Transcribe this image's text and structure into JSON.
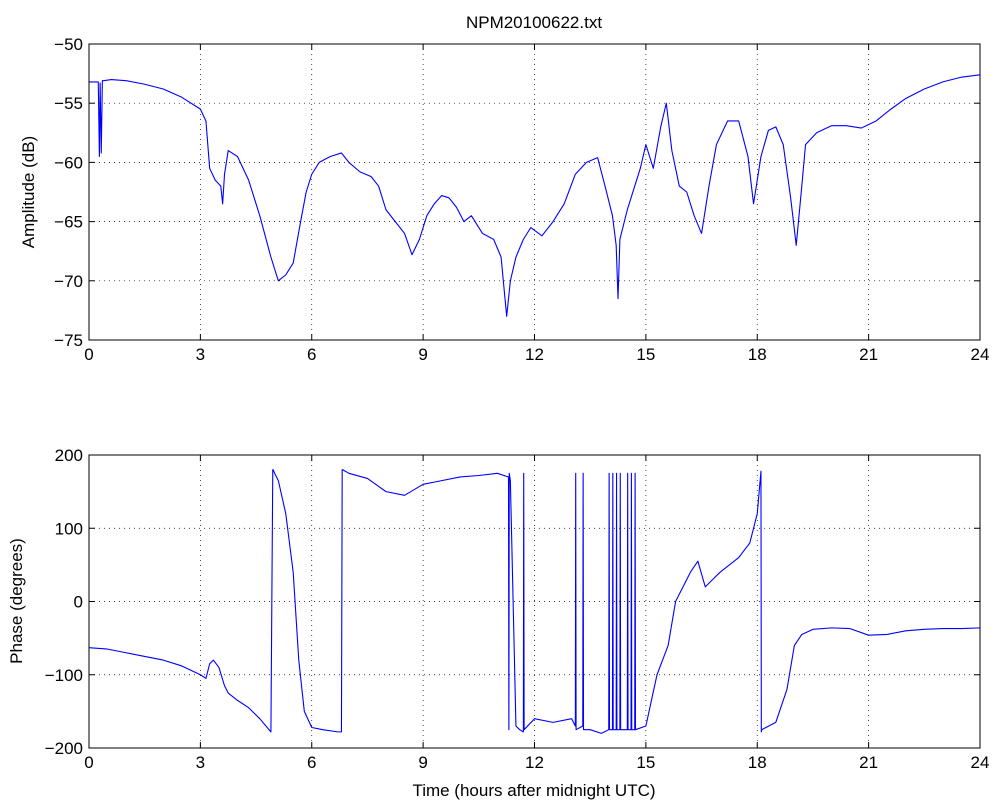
{
  "figure": {
    "title": "NPM20100622.txt",
    "background": "#ffffff",
    "line_color": "#0000ff"
  },
  "chart_data": [
    {
      "type": "line",
      "title": "NPM20100622.txt",
      "xlabel": "",
      "ylabel": "Amplitude (dB)",
      "xlim": [
        0,
        24
      ],
      "ylim": [
        -75,
        -50
      ],
      "xticks": [
        0,
        3,
        6,
        9,
        12,
        15,
        18,
        21,
        24
      ],
      "yticks": [
        -75,
        -70,
        -65,
        -60,
        -55,
        -50
      ],
      "grid": true,
      "x": [
        0,
        0.25,
        0.28,
        0.3,
        0.33,
        0.36,
        0.4,
        0.6,
        1.0,
        1.5,
        2.0,
        2.5,
        3.0,
        3.15,
        3.25,
        3.4,
        3.55,
        3.6,
        3.65,
        3.75,
        4.0,
        4.3,
        4.6,
        4.9,
        5.1,
        5.3,
        5.5,
        5.7,
        5.85,
        6.0,
        6.2,
        6.5,
        6.8,
        7.0,
        7.3,
        7.6,
        7.8,
        8.0,
        8.2,
        8.5,
        8.7,
        8.9,
        9.1,
        9.3,
        9.5,
        9.7,
        9.9,
        10.1,
        10.3,
        10.6,
        10.9,
        11.1,
        11.25,
        11.35,
        11.5,
        11.7,
        11.9,
        12.2,
        12.5,
        12.8,
        13.1,
        13.4,
        13.7,
        13.9,
        14.1,
        14.2,
        14.25,
        14.3,
        14.5,
        14.7,
        14.85,
        15.0,
        15.2,
        15.4,
        15.55,
        15.7,
        15.9,
        16.1,
        16.3,
        16.5,
        16.7,
        16.9,
        17.2,
        17.5,
        17.75,
        17.9,
        18.1,
        18.3,
        18.5,
        18.7,
        18.9,
        19.05,
        19.2,
        19.3,
        19.6,
        20.0,
        20.4,
        20.8,
        21.2,
        21.6,
        22.0,
        22.5,
        23.0,
        23.5,
        24.0
      ],
      "y": [
        -53.2,
        -53.2,
        -59.5,
        -53.3,
        -59.2,
        -53.1,
        -53.1,
        -53.0,
        -53.1,
        -53.4,
        -53.8,
        -54.5,
        -55.5,
        -56.5,
        -60.5,
        -61.5,
        -62.0,
        -63.5,
        -61.0,
        -59.0,
        -59.5,
        -61.5,
        -64.5,
        -68.0,
        -70.0,
        -69.5,
        -68.5,
        -65.0,
        -62.5,
        -61.0,
        -60.0,
        -59.5,
        -59.2,
        -60.0,
        -60.8,
        -61.2,
        -62.0,
        -64.0,
        -64.8,
        -66.0,
        -67.8,
        -66.5,
        -64.5,
        -63.5,
        -62.8,
        -63.0,
        -63.8,
        -65.0,
        -64.5,
        -66.0,
        -66.5,
        -68.0,
        -73.0,
        -70.0,
        -68.0,
        -66.5,
        -65.5,
        -66.2,
        -65.0,
        -63.5,
        -61.0,
        -60.0,
        -59.6,
        -62.0,
        -64.5,
        -67.0,
        -71.5,
        -66.5,
        -64.0,
        -62.0,
        -60.5,
        -58.5,
        -60.5,
        -57.0,
        -55.0,
        -59.0,
        -62.0,
        -62.5,
        -64.5,
        -66.0,
        -62.0,
        -58.5,
        -56.5,
        -56.5,
        -59.5,
        -63.5,
        -59.5,
        -57.3,
        -57.0,
        -58.5,
        -63.0,
        -67.0,
        -62.0,
        -58.5,
        -57.5,
        -56.9,
        -56.9,
        -57.1,
        -56.5,
        -55.5,
        -54.6,
        -53.8,
        -53.2,
        -52.8,
        -52.6
      ]
    },
    {
      "type": "line",
      "title": "",
      "xlabel": "Time (hours after midnight UTC)",
      "ylabel": "Phase (degrees)",
      "xlim": [
        0,
        24
      ],
      "ylim": [
        -200,
        200
      ],
      "xticks": [
        0,
        3,
        6,
        9,
        12,
        15,
        18,
        21,
        24
      ],
      "yticks": [
        -200,
        -100,
        0,
        100,
        200
      ],
      "grid": true,
      "x": [
        0,
        0.5,
        1.0,
        1.5,
        2.0,
        2.5,
        3.0,
        3.15,
        3.25,
        3.35,
        3.5,
        3.65,
        3.75,
        4.0,
        4.3,
        4.6,
        4.9,
        4.95,
        4.96,
        5.0,
        5.1,
        5.3,
        5.5,
        5.65,
        5.8,
        6.0,
        6.3,
        6.7,
        6.8,
        6.82,
        6.83,
        7.0,
        7.5,
        8.0,
        8.5,
        9.0,
        9.5,
        10.0,
        10.5,
        11.0,
        11.3,
        11.31,
        11.32,
        11.35,
        11.5,
        11.6,
        11.7,
        11.71,
        11.72,
        12.0,
        12.5,
        13.0,
        13.1,
        13.11,
        13.12,
        13.3,
        13.31,
        13.32,
        13.5,
        13.8,
        14.0,
        14.01,
        14.02,
        14.1,
        14.11,
        14.12,
        14.2,
        14.21,
        14.22,
        14.3,
        14.31,
        14.32,
        14.5,
        14.51,
        14.52,
        14.6,
        14.61,
        14.62,
        14.7,
        14.71,
        14.72,
        15.0,
        15.3,
        15.6,
        15.8,
        16.0,
        16.2,
        16.4,
        16.6,
        16.8,
        17.0,
        17.5,
        17.8,
        18.0,
        18.1,
        18.11,
        18.12,
        18.5,
        18.8,
        19.0,
        19.2,
        19.5,
        20.0,
        20.5,
        21.0,
        21.5,
        22.0,
        22.5,
        23.0,
        23.5,
        24.0
      ],
      "y": [
        -63,
        -65,
        -70,
        -75,
        -80,
        -88,
        -100,
        -105,
        -85,
        -80,
        -90,
        -115,
        -125,
        -135,
        -145,
        -160,
        -178,
        180,
        180,
        175,
        165,
        120,
        40,
        -80,
        -150,
        -172,
        -175,
        -178,
        -178,
        180,
        180,
        175,
        168,
        150,
        145,
        160,
        165,
        170,
        172,
        175,
        170,
        -175,
        175,
        165,
        -170,
        -175,
        -178,
        175,
        -175,
        -160,
        -165,
        -160,
        -170,
        175,
        -175,
        -170,
        175,
        -175,
        -175,
        -180,
        -175,
        175,
        -175,
        -175,
        175,
        -175,
        -175,
        175,
        -175,
        -175,
        175,
        -175,
        -175,
        175,
        -175,
        -175,
        175,
        -175,
        -175,
        175,
        -175,
        -170,
        -100,
        -60,
        0,
        20,
        40,
        55,
        20,
        30,
        40,
        60,
        80,
        120,
        178,
        -178,
        -175,
        -165,
        -120,
        -60,
        -45,
        -38,
        -36,
        -37,
        -46,
        -45,
        -40,
        -38,
        -37,
        -37,
        -36
      ]
    }
  ]
}
